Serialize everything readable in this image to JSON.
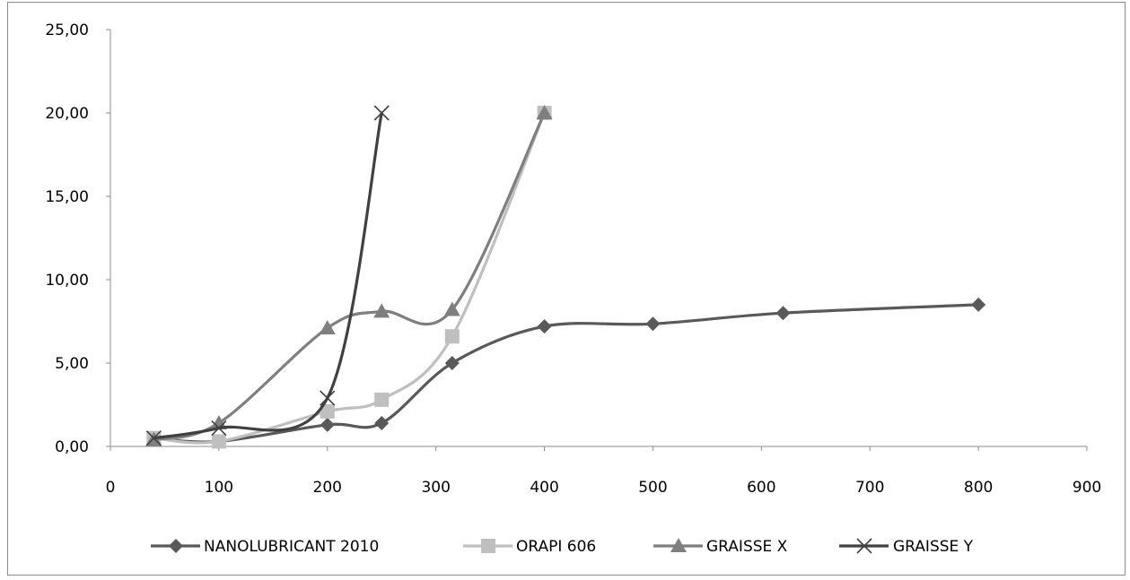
{
  "chart_data": {
    "type": "line",
    "title": "",
    "xlabel": "",
    "ylabel": "",
    "xlim": [
      0,
      900
    ],
    "ylim": [
      0,
      25
    ],
    "x_ticks": [
      "0",
      "100",
      "200",
      "300",
      "400",
      "500",
      "600",
      "700",
      "800",
      "900"
    ],
    "y_ticks": [
      "0,00",
      "5,00",
      "10,00",
      "15,00",
      "20,00",
      "25,00"
    ],
    "grid": false,
    "legend_position": "bottom",
    "series": [
      {
        "name": "NANOLUBRICANT 2010",
        "color": "#595959",
        "marker": "diamond",
        "points": [
          [
            40,
            0.5
          ],
          [
            100,
            0.3
          ],
          [
            200,
            1.3
          ],
          [
            250,
            1.4
          ],
          [
            315,
            5.0
          ],
          [
            400,
            7.2
          ],
          [
            500,
            7.35
          ],
          [
            620,
            8.0
          ],
          [
            800,
            8.5
          ]
        ]
      },
      {
        "name": "ORAPI 606",
        "color": "#bfbfbf",
        "marker": "square",
        "points": [
          [
            40,
            0.5
          ],
          [
            100,
            0.3
          ],
          [
            200,
            2.1
          ],
          [
            250,
            2.8
          ],
          [
            315,
            6.6
          ],
          [
            400,
            20.0
          ]
        ]
      },
      {
        "name": "GRAISSE X",
        "color": "#7f7f7f",
        "marker": "triangle",
        "points": [
          [
            40,
            0.4
          ],
          [
            100,
            1.4
          ],
          [
            200,
            7.1
          ],
          [
            250,
            8.1
          ],
          [
            315,
            8.2
          ],
          [
            400,
            20.0
          ]
        ]
      },
      {
        "name": "GRAISSE Y",
        "color": "#404040",
        "marker": "x",
        "points": [
          [
            40,
            0.5
          ],
          [
            100,
            1.1
          ],
          [
            200,
            2.9
          ],
          [
            250,
            20.0
          ]
        ]
      }
    ]
  }
}
